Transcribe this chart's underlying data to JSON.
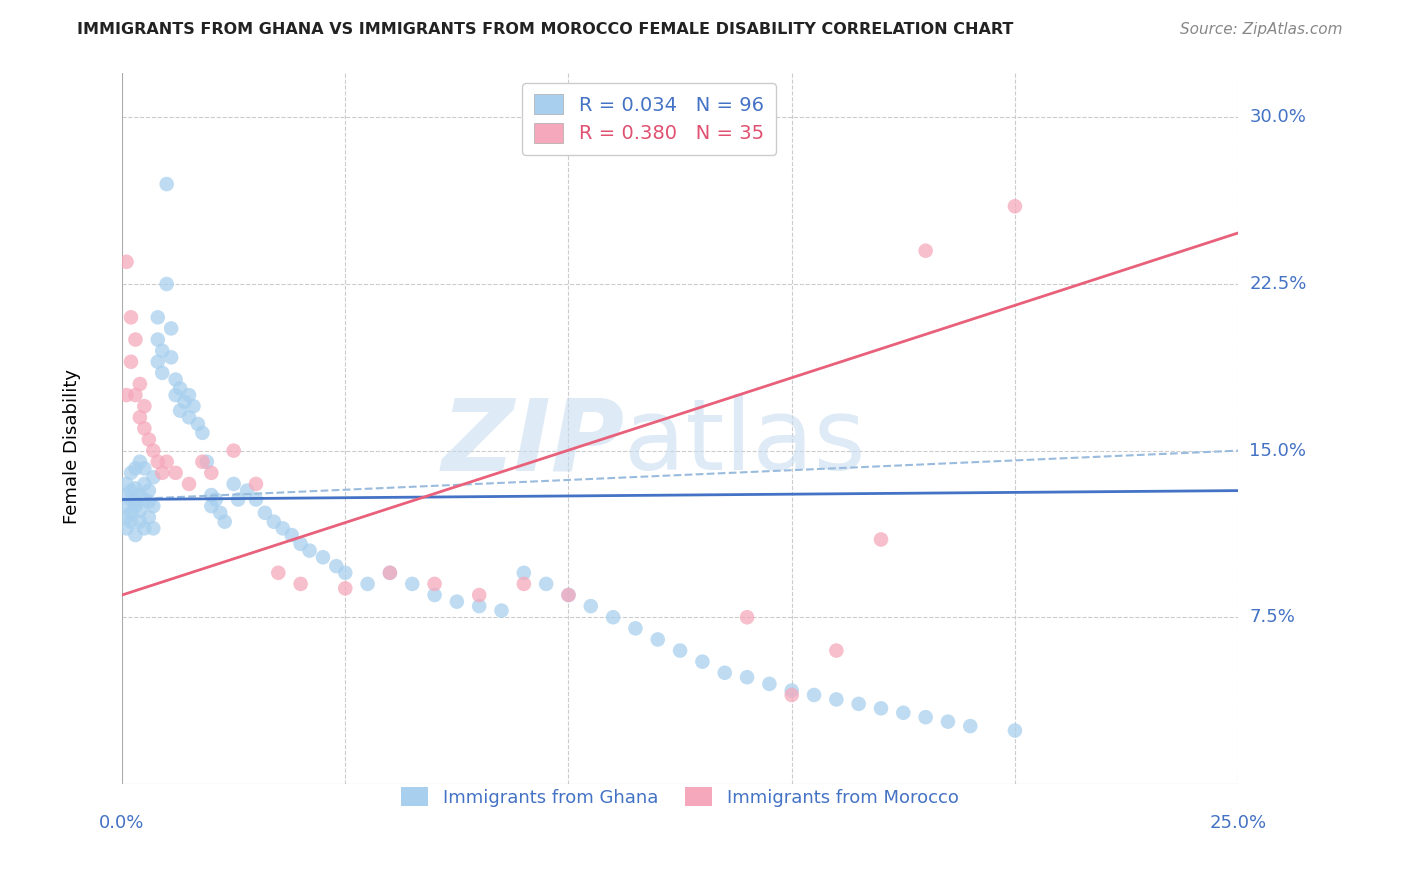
{
  "title": "IMMIGRANTS FROM GHANA VS IMMIGRANTS FROM MOROCCO FEMALE DISABILITY CORRELATION CHART",
  "source": "Source: ZipAtlas.com",
  "ylabel": "Female Disability",
  "ytick_labels": [
    "30.0%",
    "22.5%",
    "15.0%",
    "7.5%"
  ],
  "ytick_values": [
    0.3,
    0.225,
    0.15,
    0.075
  ],
  "xlim": [
    0.0,
    0.25
  ],
  "ylim": [
    0.0,
    0.32
  ],
  "ghana_R": 0.034,
  "ghana_N": 96,
  "morocco_R": 0.38,
  "morocco_N": 35,
  "ghana_color": "#A8D0EE",
  "morocco_color": "#F5A8BB",
  "ghana_line_color": "#4472C4",
  "morocco_line_color": "#E8607A",
  "ghana_trend_start_y": 0.128,
  "ghana_trend_end_y": 0.132,
  "morocco_trend_start_y": 0.085,
  "morocco_trend_end_y": 0.248,
  "dashed_line_start_y": 0.128,
  "dashed_line_end_y": 0.15,
  "ghana_points_x": [
    0.001,
    0.001,
    0.001,
    0.001,
    0.001,
    0.002,
    0.002,
    0.002,
    0.002,
    0.002,
    0.003,
    0.003,
    0.003,
    0.003,
    0.003,
    0.004,
    0.004,
    0.004,
    0.004,
    0.005,
    0.005,
    0.005,
    0.005,
    0.006,
    0.006,
    0.006,
    0.007,
    0.007,
    0.007,
    0.008,
    0.008,
    0.008,
    0.009,
    0.009,
    0.01,
    0.01,
    0.011,
    0.011,
    0.012,
    0.012,
    0.013,
    0.013,
    0.014,
    0.015,
    0.015,
    0.016,
    0.017,
    0.018,
    0.019,
    0.02,
    0.02,
    0.021,
    0.022,
    0.023,
    0.025,
    0.026,
    0.028,
    0.03,
    0.032,
    0.034,
    0.036,
    0.038,
    0.04,
    0.042,
    0.045,
    0.048,
    0.05,
    0.055,
    0.06,
    0.065,
    0.07,
    0.075,
    0.08,
    0.085,
    0.09,
    0.095,
    0.1,
    0.105,
    0.11,
    0.115,
    0.12,
    0.125,
    0.13,
    0.135,
    0.14,
    0.145,
    0.15,
    0.155,
    0.16,
    0.165,
    0.17,
    0.175,
    0.18,
    0.185,
    0.19,
    0.2
  ],
  "ghana_points_y": [
    0.125,
    0.13,
    0.135,
    0.12,
    0.115,
    0.128,
    0.132,
    0.118,
    0.14,
    0.122,
    0.127,
    0.133,
    0.142,
    0.112,
    0.125,
    0.13,
    0.118,
    0.145,
    0.123,
    0.128,
    0.135,
    0.115,
    0.142,
    0.127,
    0.132,
    0.12,
    0.138,
    0.125,
    0.115,
    0.19,
    0.2,
    0.21,
    0.195,
    0.185,
    0.225,
    0.27,
    0.192,
    0.205,
    0.175,
    0.182,
    0.168,
    0.178,
    0.172,
    0.165,
    0.175,
    0.17,
    0.162,
    0.158,
    0.145,
    0.13,
    0.125,
    0.128,
    0.122,
    0.118,
    0.135,
    0.128,
    0.132,
    0.128,
    0.122,
    0.118,
    0.115,
    0.112,
    0.108,
    0.105,
    0.102,
    0.098,
    0.095,
    0.09,
    0.095,
    0.09,
    0.085,
    0.082,
    0.08,
    0.078,
    0.095,
    0.09,
    0.085,
    0.08,
    0.075,
    0.07,
    0.065,
    0.06,
    0.055,
    0.05,
    0.048,
    0.045,
    0.042,
    0.04,
    0.038,
    0.036,
    0.034,
    0.032,
    0.03,
    0.028,
    0.026,
    0.024
  ],
  "morocco_points_x": [
    0.001,
    0.001,
    0.002,
    0.002,
    0.003,
    0.003,
    0.004,
    0.004,
    0.005,
    0.005,
    0.006,
    0.007,
    0.008,
    0.009,
    0.01,
    0.012,
    0.015,
    0.018,
    0.02,
    0.025,
    0.03,
    0.035,
    0.04,
    0.05,
    0.06,
    0.07,
    0.08,
    0.09,
    0.1,
    0.14,
    0.15,
    0.16,
    0.17,
    0.18,
    0.2
  ],
  "morocco_points_y": [
    0.235,
    0.175,
    0.21,
    0.19,
    0.2,
    0.175,
    0.18,
    0.165,
    0.17,
    0.16,
    0.155,
    0.15,
    0.145,
    0.14,
    0.145,
    0.14,
    0.135,
    0.145,
    0.14,
    0.15,
    0.135,
    0.095,
    0.09,
    0.088,
    0.095,
    0.09,
    0.085,
    0.09,
    0.085,
    0.075,
    0.04,
    0.06,
    0.11,
    0.24,
    0.26
  ]
}
